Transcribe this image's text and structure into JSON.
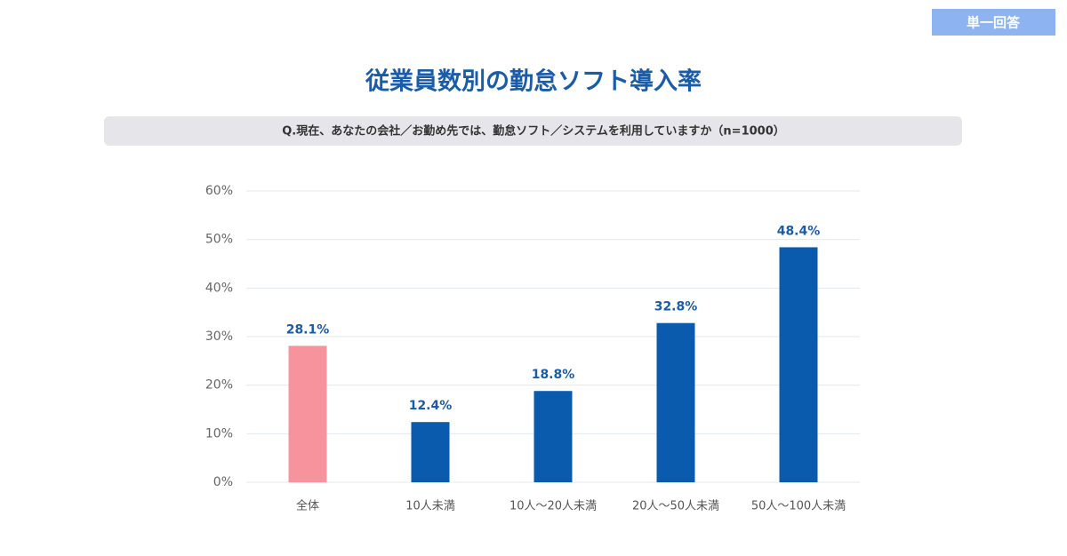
{
  "chart_data": {
    "type": "bar",
    "badge": "単一回答",
    "title": "従業員数別の勤怠ソフト導入率",
    "subtitle": "Q.現在、あなたの会社／お勤め先では、勤怠ソフト／システムを利用していますか（n=1000）",
    "categories": [
      "全体",
      "10人未満",
      "10人〜20人未満",
      "20人〜50人未満",
      "50人〜100人未満"
    ],
    "values": [
      28.1,
      12.4,
      18.8,
      32.8,
      48.4
    ],
    "value_labels": [
      "28.1%",
      "12.4%",
      "18.8%",
      "32.8%",
      "48.4%"
    ],
    "colors": [
      "#f7939c",
      "#0a5aad",
      "#0a5aad",
      "#0a5aad",
      "#0a5aad"
    ],
    "ylim": [
      0,
      60
    ],
    "yticks": [
      {
        "value": 0,
        "label": "0%"
      },
      {
        "value": 10,
        "label": "10%"
      },
      {
        "value": 20,
        "label": "20%"
      },
      {
        "value": 30,
        "label": "30%"
      },
      {
        "value": 40,
        "label": "40%"
      },
      {
        "value": 50,
        "label": "50%"
      },
      {
        "value": 60,
        "label": "60%"
      }
    ],
    "grid": true
  }
}
